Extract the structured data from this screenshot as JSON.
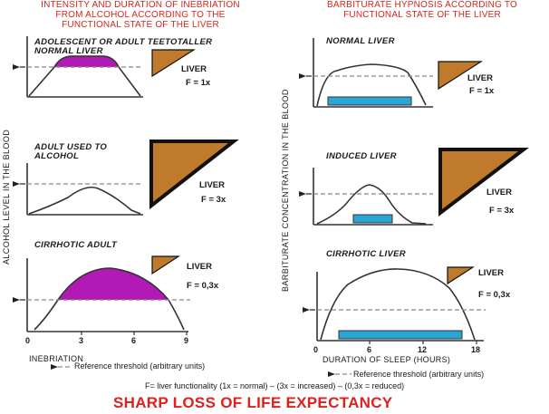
{
  "left": {
    "title": "INTENSITY AND DURATION OF INEBRIATION\nFROM ALCOHOL ACCORDING TO THE\nFUNCTIONAL STATE OF THE LIVER",
    "y_axis": "ALCOHOL LEVEL IN THE BLOOD",
    "x_axis": "INEBRIATION",
    "ticks": [
      "0",
      "3",
      "6",
      "9"
    ],
    "panels": [
      {
        "label": "ADOLESCENT OR ADULT TEETOTALLER\nNORMAL LIVER",
        "liver": "LIVER",
        "f": "F = 1x"
      },
      {
        "label": "ADULT USED TO\nALCOHOL",
        "liver": "LIVER",
        "f": "F = 3x"
      },
      {
        "label": "CIRRHOTIC ADULT",
        "liver": "LIVER",
        "f": "F = 0,3x"
      }
    ]
  },
  "right": {
    "title": "BARBITURATE HYPNOSIS ACCORDING TO\nFUNCTIONAL STATE OF THE LIVER",
    "y_axis": "BARBITURATE CONCENTRATION IN THE BLOOD",
    "x_axis": "DURATION OF SLEEP (HOURS)",
    "ticks": [
      "0",
      "6",
      "12",
      "18"
    ],
    "panels": [
      {
        "label": "NORMAL LIVER",
        "liver": "LIVER",
        "f": "F = 1x"
      },
      {
        "label": "INDUCED LIVER",
        "liver": "LIVER",
        "f": "F = 3x"
      },
      {
        "label": "CIRRHOTIC LIVER",
        "liver": "LIVER",
        "f": "F = 0,3x"
      }
    ]
  },
  "legend": {
    "threshold_left": "Reference threshold (arbitrary units)",
    "threshold_right": "Reference threshold (arbitrary units)"
  },
  "footnote": "F= liver functionality (1x = normal) – (3x = increased) – (0,3x = reduced)",
  "conclusion": "SHARP LOSS OF LIFE EXPECTANCY",
  "colors": {
    "title_red": "#d9261c",
    "inebriation_fill": "#b21ab5",
    "sleep_bar": "#2aa6d6",
    "liver_brown": "#c07a2c"
  }
}
